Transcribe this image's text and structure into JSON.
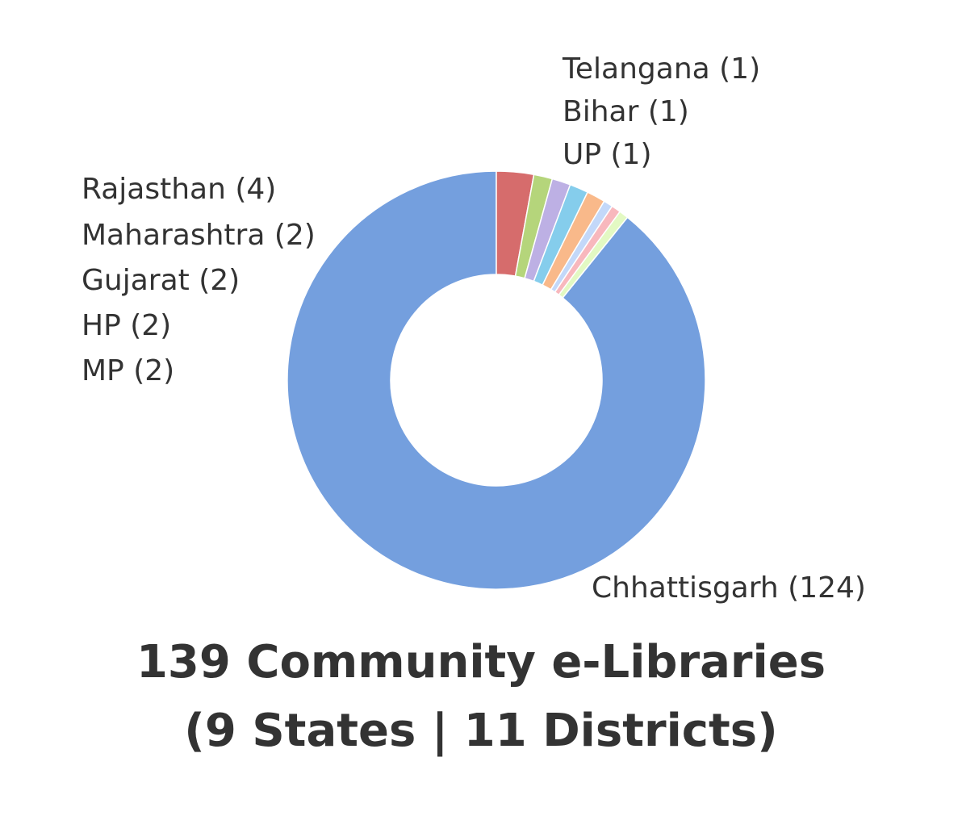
{
  "chart_data": {
    "type": "pie",
    "donut": true,
    "start": "top",
    "direction": "clockwise",
    "title": "139 Community e-Libraries",
    "subtitle": "(9 States | 11 Districts)",
    "slices": [
      {
        "name": "Chhattisgarh",
        "value": 124,
        "label": "Chhattisgarh (124)",
        "color": "#749fde"
      },
      {
        "name": "Rajasthan",
        "value": 4,
        "label": "Rajasthan (4)",
        "color": "#d66c6c"
      },
      {
        "name": "Maharashtra",
        "value": 2,
        "label": "Maharashtra (2)",
        "color": "#b5d57b"
      },
      {
        "name": "Gujarat",
        "value": 2,
        "label": "Gujarat (2)",
        "color": "#bdb0e4"
      },
      {
        "name": "HP",
        "value": 2,
        "label": "HP (2)",
        "color": "#85cdec"
      },
      {
        "name": "MP",
        "value": 2,
        "label": "MP (2)",
        "color": "#f9b98a"
      },
      {
        "name": "Telangana",
        "value": 1,
        "label": "Telangana (1)",
        "color": "#c3d8f9"
      },
      {
        "name": "Bihar",
        "value": 1,
        "label": "Bihar (1)",
        "color": "#f8b8bd"
      },
      {
        "name": "UP",
        "value": 1,
        "label": "UP (1)",
        "color": "#e3f9c3"
      }
    ]
  }
}
